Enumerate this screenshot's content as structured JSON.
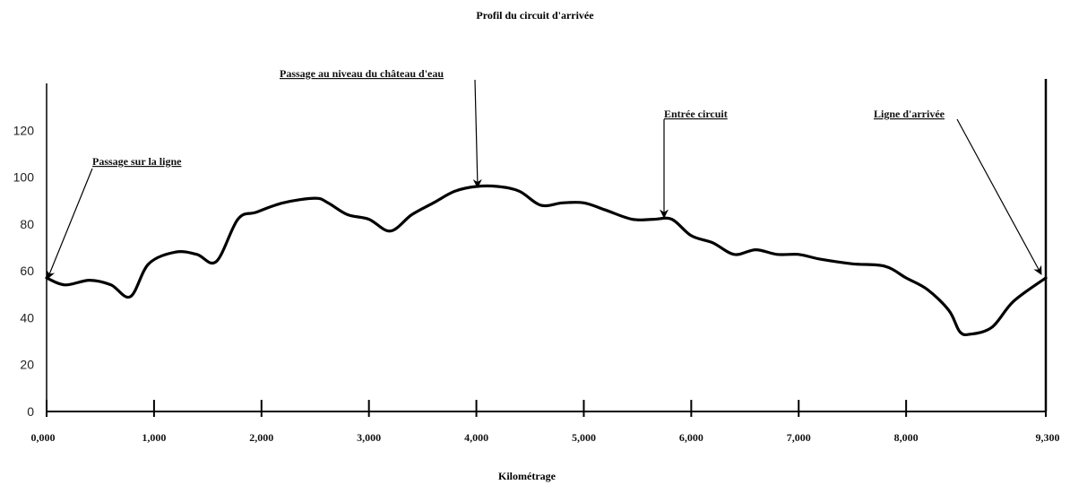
{
  "chart_data": {
    "type": "line",
    "title": "Profil du circuit d'arrivée",
    "xlabel": "Kilométrage",
    "ylabel": "",
    "ylim": [
      0,
      140
    ],
    "xlim": [
      0,
      9.3
    ],
    "y_ticks": [
      0,
      20,
      40,
      60,
      80,
      100,
      120
    ],
    "x_ticks": [
      {
        "value": 0,
        "label": "0,000"
      },
      {
        "value": 1,
        "label": "1,000"
      },
      {
        "value": 2,
        "label": "2,000"
      },
      {
        "value": 3,
        "label": "3,000"
      },
      {
        "value": 4,
        "label": "4,000"
      },
      {
        "value": 5,
        "label": "5,000"
      },
      {
        "value": 6,
        "label": "6,000"
      },
      {
        "value": 7,
        "label": "7,000"
      },
      {
        "value": 8,
        "label": "8,000"
      },
      {
        "value": 9.3,
        "label": "9,300"
      }
    ],
    "grid": false,
    "series": [
      {
        "color": "#000000",
        "x": [
          0,
          0.17,
          0.4,
          0.6,
          0.78,
          0.95,
          1.2,
          1.4,
          1.58,
          1.78,
          1.95,
          2.2,
          2.5,
          2.62,
          2.8,
          3.0,
          3.2,
          3.4,
          3.6,
          3.8,
          4.0,
          4.2,
          4.4,
          4.6,
          4.8,
          5.0,
          5.2,
          5.45,
          5.65,
          5.82,
          6.0,
          6.2,
          6.4,
          6.6,
          6.8,
          7.0,
          7.2,
          7.5,
          7.8,
          8.0,
          8.2,
          8.4,
          8.5,
          8.6,
          8.8,
          9.0,
          9.3
        ],
        "y": [
          57,
          54,
          56,
          54,
          49,
          63,
          68,
          67,
          64,
          82,
          85,
          89,
          91,
          89,
          84,
          82,
          77,
          84,
          89,
          94,
          96,
          96,
          94,
          88,
          89,
          89,
          86,
          82,
          82,
          82,
          75,
          72,
          67,
          69,
          67,
          67,
          65,
          63,
          62,
          57,
          52,
          43,
          34,
          33,
          36,
          47,
          57
        ]
      }
    ],
    "annotations": [
      {
        "text": "Passage sur la ligne",
        "x": 0,
        "y": 57
      },
      {
        "text": "Passage au niveau du château d'eau",
        "x": 4.05,
        "y": 96
      },
      {
        "text": "Entrée circuit",
        "x": 5.82,
        "y": 82
      },
      {
        "text": "Ligne d'arrivée",
        "x": 9.3,
        "y": 57
      }
    ]
  }
}
